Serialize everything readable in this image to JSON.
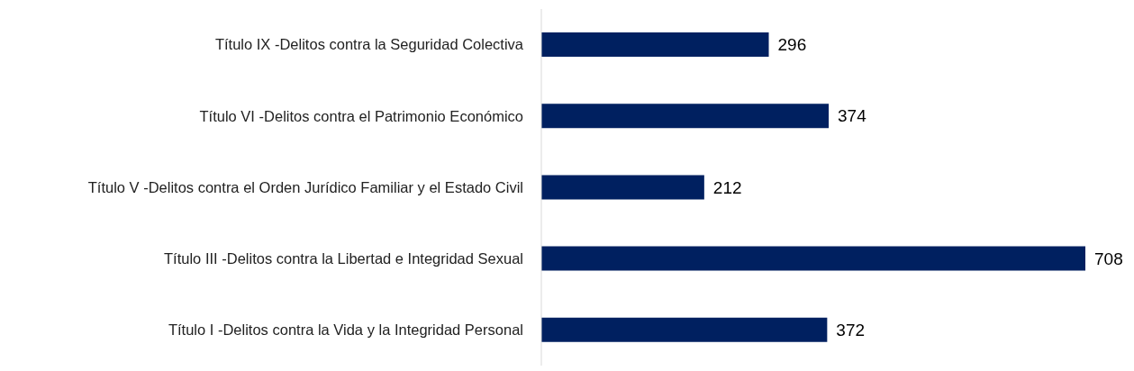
{
  "chart_data": {
    "type": "bar",
    "orientation": "horizontal",
    "categories": [
      "Título IX -Delitos contra la Seguridad Colectiva",
      "Título VI -Delitos contra el Patrimonio Económico",
      "Título V -Delitos contra el Orden Jurídico Familiar y el Estado Civil",
      "Título III -Delitos contra la Libertad e Integridad Sexual",
      "Título I -Delitos contra la Vida y la Integridad Personal"
    ],
    "values": [
      296,
      374,
      212,
      708,
      372
    ],
    "color": "#002060",
    "data_labels": true
  }
}
